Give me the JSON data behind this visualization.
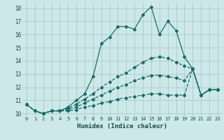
{
  "xlabel": "Humidex (Indice chaleur)",
  "background_color": "#cce8e8",
  "grid_color": "#aacccc",
  "line_color": "#1a6b6b",
  "xlim": [
    -0.5,
    23.5
  ],
  "ylim": [
    9.8,
    18.4
  ],
  "yticks": [
    10,
    11,
    12,
    13,
    14,
    15,
    16,
    17,
    18
  ],
  "xticks": [
    0,
    1,
    2,
    3,
    4,
    5,
    6,
    7,
    8,
    9,
    10,
    11,
    12,
    13,
    14,
    15,
    16,
    17,
    18,
    19,
    20,
    21,
    22,
    23
  ],
  "series": [
    [
      10.7,
      10.2,
      10.0,
      10.2,
      10.2,
      10.5,
      11.0,
      11.5,
      12.8,
      15.3,
      15.8,
      16.6,
      16.6,
      16.4,
      17.5,
      18.1,
      16.0,
      17.0,
      16.3,
      14.3,
      13.4,
      11.4,
      11.8,
      11.8
    ],
    [
      10.7,
      10.2,
      10.0,
      10.2,
      10.2,
      10.4,
      10.7,
      11.1,
      11.5,
      12.0,
      12.4,
      12.8,
      13.1,
      13.5,
      13.9,
      14.2,
      14.3,
      14.2,
      13.9,
      13.6,
      13.4,
      11.4,
      11.8,
      11.8
    ],
    [
      10.7,
      10.2,
      10.0,
      10.2,
      10.2,
      10.3,
      10.5,
      10.8,
      11.1,
      11.4,
      11.7,
      12.0,
      12.2,
      12.5,
      12.7,
      12.9,
      12.9,
      12.8,
      12.7,
      12.5,
      13.4,
      11.4,
      11.8,
      11.8
    ],
    [
      10.7,
      10.2,
      10.0,
      10.2,
      10.2,
      10.2,
      10.3,
      10.5,
      10.6,
      10.8,
      10.9,
      11.1,
      11.2,
      11.3,
      11.4,
      11.5,
      11.5,
      11.4,
      11.4,
      11.4,
      13.4,
      11.4,
      11.8,
      11.8
    ]
  ],
  "marker_size": 2.0,
  "line_width": 0.9
}
